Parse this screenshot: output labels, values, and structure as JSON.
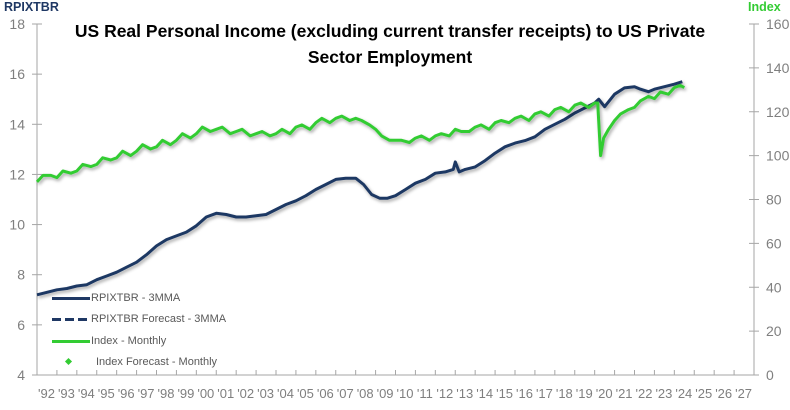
{
  "chart_data": {
    "type": "line",
    "title": "US Real Personal Income (excluding current transfer receipts) to US Private Sector Employment",
    "title_lines": [
      "US Real Personal Income (excluding current transfer receipts) to US Private",
      "Sector Employment"
    ],
    "left_axis": {
      "label": "RPIXTBR",
      "color": "#1f3864",
      "min": 4,
      "max": 18,
      "step": 2,
      "ticks": [
        "4",
        "6",
        "8",
        "10",
        "12",
        "14",
        "16",
        "18"
      ]
    },
    "right_axis": {
      "label": "Index",
      "color": "#33cc33",
      "min": 0,
      "max": 160,
      "step": 20,
      "ticks": [
        "0",
        "20",
        "40",
        "60",
        "80",
        "100",
        "120",
        "140",
        "160"
      ]
    },
    "x_tick_labels": [
      "'92",
      "'93",
      "'94",
      "'95",
      "'96",
      "'97",
      "'98",
      "'99",
      "'00",
      "'01",
      "'02",
      "'03",
      "'04",
      "'05",
      "'06",
      "'07",
      "'08",
      "'09",
      "'10",
      "'11",
      "'12",
      "'13",
      "'14",
      "'15",
      "'16",
      "'17",
      "'18",
      "'19",
      "'20",
      "'21",
      "'22",
      "'23",
      "'24",
      "'25",
      "'26",
      "'27"
    ],
    "x_range": [
      1992,
      2028
    ],
    "grid": false,
    "legend_position": "lower-left inside plot",
    "legend": [
      {
        "label": "RPIXTBR - 3MMA",
        "style": "solid",
        "color": "#1f3864"
      },
      {
        "label": "RPIXTBR Forecast - 3MMA",
        "style": "dashed",
        "color": "#1f3864"
      },
      {
        "label": "Index - Monthly",
        "style": "solid",
        "color": "#33cc33"
      },
      {
        "label": "Index Forecast - Monthly",
        "style": "marker",
        "color": "#33cc33"
      }
    ],
    "series": [
      {
        "name": "RPIXTBR - 3MMA",
        "axis": "left",
        "color": "#1f3864",
        "x": [
          1992.0,
          1992.5,
          1993.0,
          1993.5,
          1994.0,
          1994.5,
          1995.0,
          1995.5,
          1996.0,
          1996.5,
          1997.0,
          1997.5,
          1998.0,
          1998.5,
          1999.0,
          1999.5,
          2000.0,
          2000.5,
          2001.0,
          2001.5,
          2002.0,
          2002.5,
          2003.0,
          2003.5,
          2004.0,
          2004.5,
          2005.0,
          2005.5,
          2006.0,
          2006.5,
          2007.0,
          2007.5,
          2008.0,
          2008.4,
          2008.8,
          2009.2,
          2009.6,
          2010.0,
          2010.5,
          2011.0,
          2011.5,
          2012.0,
          2012.5,
          2012.9,
          2013.0,
          2013.2,
          2013.5,
          2014.0,
          2014.5,
          2015.0,
          2015.5,
          2016.0,
          2016.5,
          2017.0,
          2017.5,
          2018.0,
          2018.5,
          2019.0,
          2019.5,
          2020.0,
          2020.2,
          2020.5,
          2021.0,
          2021.5,
          2022.0,
          2022.3,
          2022.7,
          2023.0,
          2023.5,
          2024.0,
          2024.4
        ],
        "values": [
          7.2,
          7.3,
          7.4,
          7.45,
          7.55,
          7.6,
          7.8,
          7.95,
          8.1,
          8.3,
          8.5,
          8.8,
          9.15,
          9.4,
          9.55,
          9.7,
          9.95,
          10.3,
          10.45,
          10.4,
          10.3,
          10.3,
          10.35,
          10.4,
          10.6,
          10.8,
          10.95,
          11.15,
          11.4,
          11.6,
          11.8,
          11.85,
          11.85,
          11.6,
          11.2,
          11.05,
          11.05,
          11.15,
          11.4,
          11.65,
          11.8,
          12.05,
          12.1,
          12.2,
          12.5,
          12.1,
          12.2,
          12.3,
          12.55,
          12.85,
          13.1,
          13.25,
          13.35,
          13.5,
          13.8,
          14.0,
          14.2,
          14.45,
          14.65,
          14.85,
          15.0,
          14.7,
          15.2,
          15.45,
          15.5,
          15.4,
          15.3,
          15.4,
          15.5,
          15.6,
          15.7
        ]
      },
      {
        "name": "Index - Monthly",
        "axis": "right",
        "color": "#33cc33",
        "x": [
          1992.0,
          1992.3,
          1992.7,
          1993.0,
          1993.3,
          1993.7,
          1994.0,
          1994.3,
          1994.7,
          1995.0,
          1995.3,
          1995.7,
          1996.0,
          1996.3,
          1996.7,
          1997.0,
          1997.3,
          1997.7,
          1998.0,
          1998.3,
          1998.7,
          1999.0,
          1999.3,
          1999.7,
          2000.0,
          2000.3,
          2000.7,
          2001.0,
          2001.3,
          2001.7,
          2002.0,
          2002.3,
          2002.7,
          2003.0,
          2003.3,
          2003.7,
          2004.0,
          2004.3,
          2004.7,
          2005.0,
          2005.3,
          2005.7,
          2006.0,
          2006.3,
          2006.7,
          2007.0,
          2007.3,
          2007.7,
          2008.0,
          2008.3,
          2008.7,
          2009.0,
          2009.3,
          2009.7,
          2010.0,
          2010.3,
          2010.7,
          2011.0,
          2011.3,
          2011.7,
          2012.0,
          2012.3,
          2012.7,
          2013.0,
          2013.3,
          2013.7,
          2014.0,
          2014.3,
          2014.7,
          2015.0,
          2015.3,
          2015.7,
          2016.0,
          2016.3,
          2016.7,
          2017.0,
          2017.3,
          2017.7,
          2018.0,
          2018.3,
          2018.7,
          2019.0,
          2019.3,
          2019.7,
          2020.0,
          2020.15,
          2020.3,
          2020.45,
          2020.7,
          2021.0,
          2021.3,
          2021.7,
          2022.0,
          2022.3,
          2022.7,
          2023.0,
          2023.3,
          2023.7,
          2024.0,
          2024.3,
          2024.5
        ],
        "values": [
          88,
          91,
          91,
          90,
          93,
          92,
          93,
          96,
          95,
          96,
          99,
          98,
          99,
          102,
          100,
          102,
          105,
          103,
          104,
          107,
          105,
          107,
          110,
          108,
          110,
          113,
          111,
          112,
          113,
          110,
          111,
          112,
          109,
          110,
          111,
          109,
          110,
          112,
          110,
          113,
          114,
          112,
          115,
          117,
          115,
          117,
          118,
          116,
          117,
          116,
          114,
          112,
          109,
          107,
          107,
          107,
          106,
          108,
          109,
          107,
          109,
          110,
          109,
          112,
          111,
          111,
          113,
          114,
          112,
          115,
          116,
          115,
          117,
          118,
          116,
          119,
          120,
          118,
          121,
          122,
          120,
          123,
          124,
          122,
          124,
          124,
          100,
          108,
          112,
          116,
          119,
          121,
          122,
          125,
          127,
          126,
          129,
          128,
          131,
          132,
          131
        ]
      },
      {
        "name": "RPIXTBR Forecast - 3MMA",
        "axis": "left",
        "color": "#1f3864",
        "x": [],
        "values": []
      },
      {
        "name": "Index Forecast - Monthly",
        "axis": "right",
        "color": "#33cc33",
        "x": [],
        "values": []
      }
    ]
  }
}
